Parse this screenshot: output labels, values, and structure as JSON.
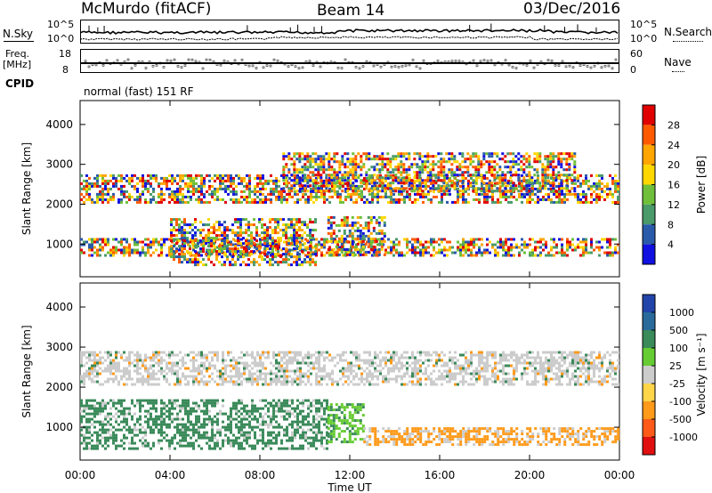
{
  "header": {
    "title": "McMurdo (fitACF)",
    "beam": "Beam 14",
    "date": "03/Dec/2016"
  },
  "top_panels": {
    "nsky_label": "N.Sky",
    "nsearch_label": "N.Search",
    "noise_ticks_left": [
      "10^5",
      "10^0"
    ],
    "noise_ticks_right": [
      "10^5",
      "10^0"
    ],
    "freq_label_1": "Freq.",
    "freq_label_2": "[MHz]",
    "freq_ticks": [
      "18",
      "8"
    ],
    "nave_label": "Nave",
    "nave_ticks": [
      "60",
      "0"
    ],
    "cpid_label": "CPID",
    "cpid_text": "normal (fast) 151 RF"
  },
  "chart_data": [
    {
      "type": "heatmap",
      "title": "",
      "xlabel": "",
      "ylabel": "Slant Range [km]",
      "xlim": [
        0,
        24
      ],
      "ylim": [
        180,
        4600
      ],
      "y_ticks": [
        "4000",
        "3000",
        "2000",
        "1000"
      ],
      "colorbar_label": "Power [dB]",
      "colorbar_ticks": [
        "28",
        "24",
        "20",
        "16",
        "12",
        "8",
        "4"
      ],
      "colorbar_colors": [
        "#e00000",
        "#ff5a00",
        "#ffa500",
        "#ffd700",
        "#6fbf3a",
        "#4a9a6a",
        "#2a5aaa",
        "#1010e0"
      ],
      "bands": [
        {
          "t0": 0.0,
          "t1": 24.0,
          "r0": 2050,
          "r1": 2750
        },
        {
          "t0": 0.0,
          "t1": 24.0,
          "r0": 700,
          "r1": 1150
        },
        {
          "t0": 4.0,
          "t1": 10.5,
          "r0": 450,
          "r1": 1650
        },
        {
          "t0": 11.0,
          "t1": 13.5,
          "r0": 700,
          "r1": 1700
        },
        {
          "t0": 9.0,
          "t1": 22.0,
          "r0": 2300,
          "r1": 3300
        }
      ]
    },
    {
      "type": "heatmap",
      "title": "",
      "xlabel": "Time UT",
      "ylabel": "Slant Range [km]",
      "xlim": [
        0,
        24
      ],
      "ylim": [
        180,
        4600
      ],
      "x_ticks": [
        "00:00",
        "04:00",
        "08:00",
        "12:00",
        "16:00",
        "20:00",
        "00:00"
      ],
      "y_ticks": [
        "4000",
        "3000",
        "2000",
        "1000"
      ],
      "colorbar_label": "Velocity [m s⁻¹]",
      "colorbar_ticks": [
        "1000",
        "500",
        "100",
        "25",
        "-25",
        "-100",
        "-500",
        "-1000"
      ],
      "colorbar_colors": [
        "#2244aa",
        "#2a6a9a",
        "#3a8a5a",
        "#66cc33",
        "#cccccc",
        "#ffd54a",
        "#ff9a1a",
        "#ff5a1a",
        "#e01010"
      ],
      "bands": [
        {
          "t0": 0.0,
          "t1": 24.0,
          "r0": 2050,
          "r1": 2900
        },
        {
          "t0": 0.0,
          "t1": 11.0,
          "r0": 500,
          "r1": 1700
        },
        {
          "t0": 11.0,
          "t1": 12.6,
          "r0": 650,
          "r1": 1600
        },
        {
          "t0": 12.6,
          "t1": 24.0,
          "r0": 550,
          "r1": 1000
        }
      ]
    }
  ]
}
